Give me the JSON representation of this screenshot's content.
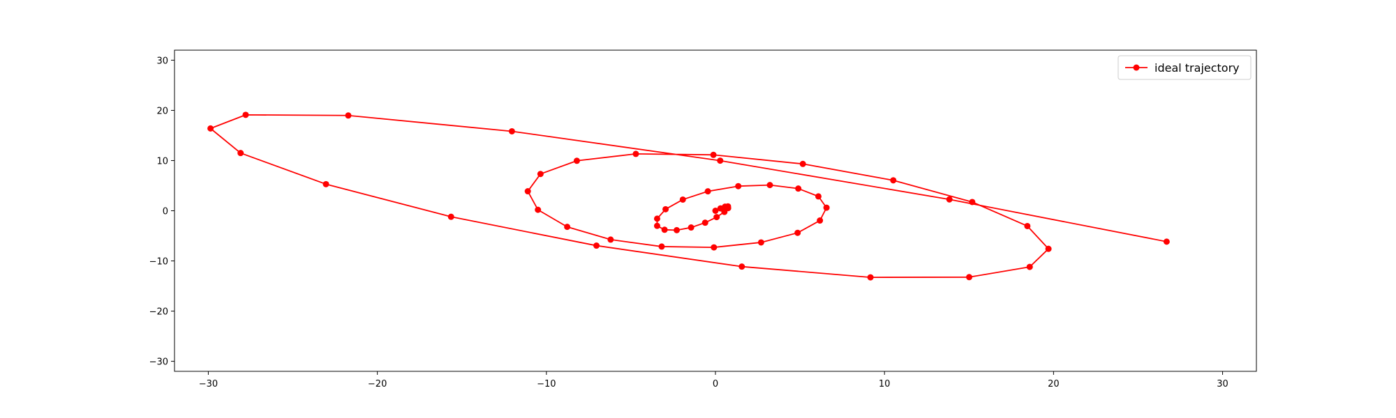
{
  "chart_data": {
    "type": "line",
    "title": "",
    "xlabel": "",
    "ylabel": "",
    "xlim": [
      -32,
      32
    ],
    "ylim": [
      -32,
      32
    ],
    "x_ticks": [
      -30,
      -20,
      -10,
      0,
      10,
      20,
      30
    ],
    "y_ticks": [
      -30,
      -20,
      -10,
      0,
      10,
      20,
      30
    ],
    "x_tick_labels": [
      "−30",
      "−20",
      "−10",
      "0",
      "10",
      "20",
      "30"
    ],
    "y_tick_labels": [
      "−30",
      "−20",
      "−10",
      "0",
      "10",
      "20",
      "30"
    ],
    "grid": false,
    "legend_location": "upper right",
    "series": [
      {
        "name": "ideal trajectory",
        "color": "#ff0000",
        "marker": "circle",
        "x": [
          0.0,
          0.3,
          0.57,
          0.74,
          0.75,
          0.53,
          0.07,
          -0.61,
          -1.44,
          -2.29,
          -3.01,
          -3.45,
          -3.45,
          -2.95,
          -1.93,
          -0.45,
          1.35,
          3.22,
          4.9,
          6.09,
          6.57,
          6.18,
          4.86,
          2.7,
          -0.09,
          -3.18,
          -6.2,
          -8.77,
          -10.5,
          -11.1,
          -10.35,
          -8.2,
          -4.71,
          -0.12,
          5.17,
          10.52,
          15.19,
          18.45,
          19.7,
          18.59,
          15.01,
          9.17,
          1.56,
          -7.04,
          -15.64,
          -23.04,
          -28.09,
          -29.87,
          -27.79,
          -21.72,
          -12.04,
          0.28,
          13.84,
          26.69
        ],
        "y": [
          0.0,
          0.47,
          0.82,
          0.87,
          0.52,
          -0.23,
          -1.26,
          -2.38,
          -3.34,
          -3.87,
          -3.79,
          -3.01,
          -1.58,
          0.3,
          2.23,
          3.87,
          4.9,
          5.12,
          4.42,
          2.86,
          0.61,
          -1.95,
          -4.4,
          -6.31,
          -7.3,
          -7.14,
          -5.75,
          -3.21,
          0.19,
          3.88,
          7.33,
          9.96,
          11.33,
          11.14,
          9.33,
          6.06,
          1.74,
          -3.05,
          -7.59,
          -11.19,
          -13.23,
          -13.27,
          -11.13,
          -6.95,
          -1.2,
          5.3,
          11.5,
          16.4,
          19.11,
          18.98,
          15.83,
          9.98,
          2.26,
          -6.16
        ]
      }
    ]
  }
}
